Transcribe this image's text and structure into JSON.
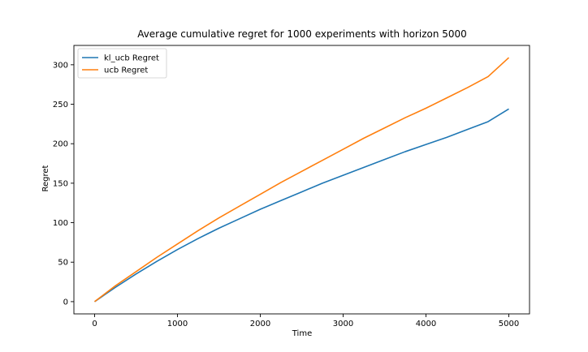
{
  "chart_data": {
    "type": "line",
    "title": "Average cumulative regret for 1000 experiments with horizon 5000",
    "xlabel": "Time",
    "ylabel": "Regret",
    "xlim": [
      -250,
      5250
    ],
    "ylim": [
      -15.5,
      324.5
    ],
    "xticks": [
      0,
      1000,
      2000,
      3000,
      4000,
      5000
    ],
    "yticks": [
      0,
      50,
      100,
      150,
      200,
      250,
      300
    ],
    "grid": false,
    "legend_position": "top-left",
    "series": [
      {
        "name": "kl_ucb Regret",
        "color": "#1f77b4",
        "x": [
          0,
          250,
          500,
          750,
          1000,
          1250,
          1500,
          1750,
          2000,
          2250,
          2500,
          2750,
          3000,
          3250,
          3500,
          3750,
          4000,
          4250,
          4500,
          4750,
          5000
        ],
        "y": [
          0,
          18,
          35,
          51,
          66,
          80,
          93,
          105,
          117,
          128,
          139,
          150,
          160,
          170,
          180,
          190,
          199,
          208,
          218,
          228,
          244
        ]
      },
      {
        "name": "ucb Regret",
        "color": "#ff7f0e",
        "x": [
          0,
          250,
          500,
          750,
          1000,
          1250,
          1500,
          1750,
          2000,
          2250,
          2500,
          2750,
          3000,
          3250,
          3500,
          3750,
          4000,
          4250,
          4500,
          4750,
          5000
        ],
        "y": [
          0,
          20,
          38,
          56,
          73,
          90,
          106,
          121,
          136,
          151,
          165,
          179,
          193,
          207,
          220,
          233,
          245,
          258,
          271,
          285,
          309
        ]
      }
    ]
  }
}
